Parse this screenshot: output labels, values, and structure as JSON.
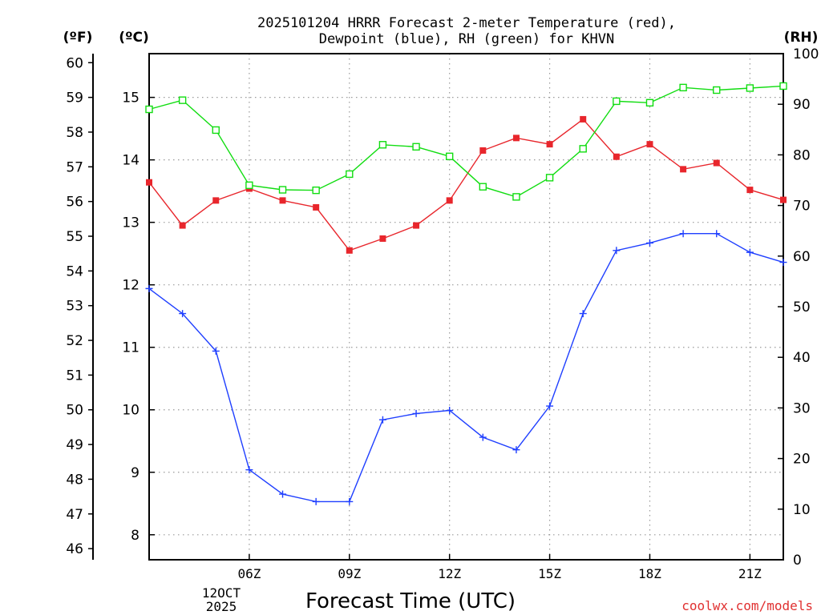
{
  "title_line1": "2025101204 HRRR Forecast 2-meter Temperature (red),",
  "title_line2": "Dewpoint (blue), RH (green) for KHVN",
  "unit_f": "(ºF)",
  "unit_c": "(ºC)",
  "unit_rh": "(RH)",
  "xlabel": "Forecast Time (UTC)",
  "credit": "coolwx.com/models",
  "date_label_line1": "12OCT",
  "date_label_line2": "2025",
  "colors": {
    "temperature": "#e8262c",
    "dewpoint": "#1f3fff",
    "rh": "#11dd11",
    "credit": "#e03030",
    "grid": "#9a9a9a"
  },
  "chart_data": {
    "type": "line",
    "title": "2025101204 HRRR Forecast 2-meter Temperature (red), Dewpoint (blue), RH (green) for KHVN",
    "xlabel": "Forecast Time (UTC)",
    "x_hours": [
      3,
      4,
      5,
      6,
      7,
      8,
      9,
      10,
      11,
      12,
      13,
      14,
      15,
      16,
      17,
      18,
      19,
      20,
      21,
      22
    ],
    "xlim": [
      3,
      22
    ],
    "x_ticks": [
      {
        "hour": 6,
        "label": "06Z"
      },
      {
        "hour": 9,
        "label": "09Z"
      },
      {
        "hour": 12,
        "label": "12Z"
      },
      {
        "hour": 15,
        "label": "15Z"
      },
      {
        "hour": 18,
        "label": "18Z"
      },
      {
        "hour": 21,
        "label": "21Z"
      }
    ],
    "ylim_c": [
      7.6,
      15.7
    ],
    "ylim_f": [
      45.68,
      60.26
    ],
    "ylim_rh": [
      0,
      100
    ],
    "yticks_c": [
      "8",
      "9",
      "10",
      "11",
      "12",
      "13",
      "14",
      "15"
    ],
    "yticks_f": [
      "46",
      "47",
      "48",
      "49",
      "50",
      "51",
      "52",
      "53",
      "54",
      "55",
      "56",
      "57",
      "58",
      "59",
      "60"
    ],
    "yticks_rh": [
      "0",
      "10",
      "20",
      "30",
      "40",
      "50",
      "60",
      "70",
      "80",
      "90",
      "100"
    ],
    "series": [
      {
        "name": "Temperature",
        "unit": "C",
        "axis": "celsius",
        "marker": "filled-square",
        "color_key": "temperature",
        "values": [
          13.64,
          12.95,
          13.35,
          13.54,
          13.35,
          13.24,
          12.55,
          12.74,
          12.95,
          13.35,
          14.15,
          14.35,
          14.25,
          14.65,
          14.05,
          14.25,
          13.85,
          13.95,
          13.52,
          13.36
        ]
      },
      {
        "name": "Dewpoint",
        "unit": "C",
        "axis": "celsius",
        "marker": "plus",
        "color_key": "dewpoint",
        "values": [
          11.94,
          11.54,
          10.94,
          9.04,
          8.65,
          8.53,
          8.53,
          9.84,
          9.94,
          9.99,
          9.56,
          9.36,
          10.06,
          11.54,
          12.55,
          12.67,
          12.82,
          12.82,
          12.52,
          12.36
        ]
      },
      {
        "name": "RH",
        "unit": "%",
        "axis": "rh",
        "marker": "open-square",
        "color_key": "rh",
        "values": [
          89.0,
          90.8,
          84.9,
          74.0,
          73.1,
          73.0,
          76.2,
          82.0,
          81.6,
          79.7,
          73.7,
          71.7,
          75.5,
          81.2,
          90.6,
          90.3,
          93.3,
          92.8,
          93.2,
          93.6
        ]
      }
    ]
  }
}
